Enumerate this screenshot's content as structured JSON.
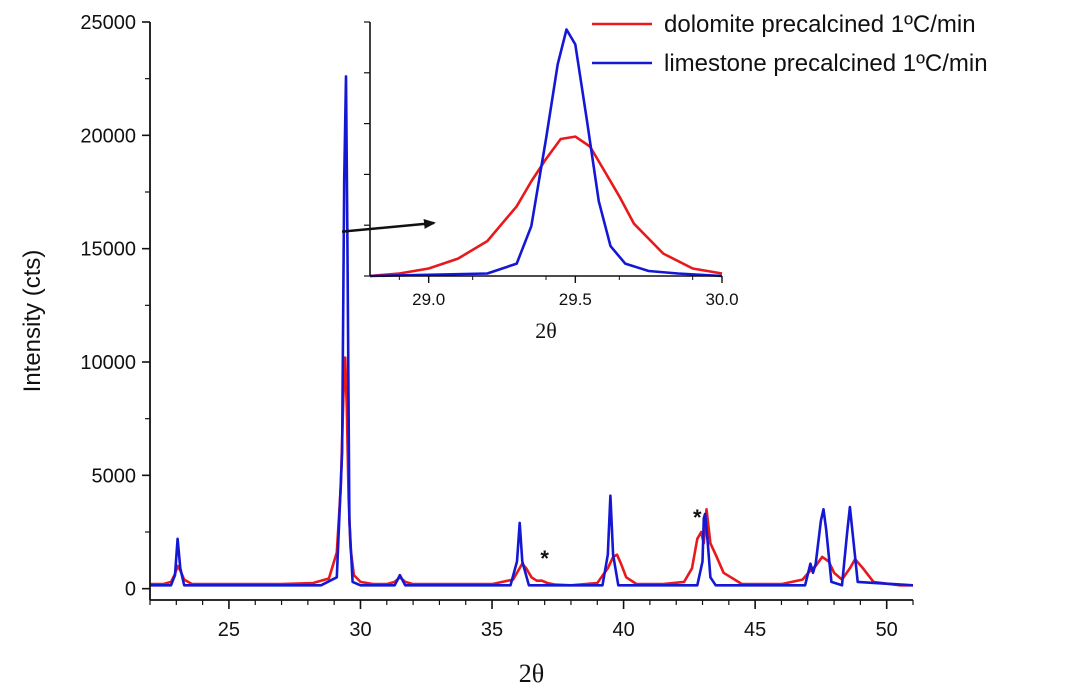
{
  "colors": {
    "dolomite": "#e8191c",
    "limestone": "#1418d4",
    "axis": "#111111",
    "arrow": "#111111"
  },
  "chart_data": [
    {
      "type": "line",
      "title": "",
      "xlabel": "2θ",
      "ylabel": "Intensity (cts)",
      "xlim": [
        22,
        51
      ],
      "ylim": [
        -500,
        25000
      ],
      "x_ticks": [
        25,
        30,
        35,
        40,
        45,
        50
      ],
      "x_tick_labels": [
        "25",
        "30",
        "35",
        "40",
        "45",
        "50"
      ],
      "y_ticks": [
        0,
        5000,
        10000,
        15000,
        20000,
        25000
      ],
      "y_tick_labels": [
        "0",
        "5000",
        "10000",
        "15000",
        "20000",
        "25000"
      ],
      "legend_position": "top-right",
      "series": [
        {
          "name": "dolomite precalcined 1ºC/min",
          "color": "#e8191c",
          "x": [
            22.0,
            22.5,
            22.8,
            22.95,
            23.05,
            23.15,
            23.3,
            23.6,
            25.0,
            27.0,
            28.2,
            28.8,
            29.1,
            29.25,
            29.35,
            29.42,
            29.48,
            29.55,
            29.62,
            29.75,
            30.0,
            30.5,
            31.0,
            31.3,
            31.5,
            31.7,
            32.0,
            33.0,
            35.0,
            35.8,
            36.0,
            36.15,
            36.3,
            36.5,
            36.7,
            36.9,
            37.1,
            37.4,
            38.0,
            39.0,
            39.4,
            39.6,
            39.75,
            39.9,
            40.1,
            40.5,
            41.5,
            42.3,
            42.6,
            42.8,
            42.95,
            43.05,
            43.15,
            43.3,
            43.5,
            43.8,
            44.5,
            46.0,
            46.8,
            47.1,
            47.3,
            47.55,
            47.8,
            48.0,
            48.3,
            48.6,
            48.8,
            49.1,
            49.5,
            50.5,
            51.0
          ],
          "y": [
            200,
            200,
            300,
            650,
            1000,
            800,
            400,
            200,
            200,
            200,
            250,
            450,
            1600,
            4500,
            8500,
            10200,
            8000,
            4000,
            1800,
            600,
            300,
            200,
            200,
            300,
            500,
            300,
            200,
            200,
            200,
            400,
            800,
            1100,
            900,
            500,
            350,
            350,
            250,
            180,
            150,
            250,
            900,
            1400,
            1500,
            1100,
            500,
            200,
            200,
            300,
            900,
            2200,
            2500,
            2000,
            3500,
            2000,
            1500,
            700,
            200,
            200,
            400,
            800,
            1000,
            1400,
            1200,
            700,
            400,
            900,
            1300,
            900,
            300,
            150,
            150
          ]
        },
        {
          "name": "limestone precalcined 1ºC/min",
          "color": "#1418d4",
          "x": [
            22.0,
            22.8,
            22.95,
            23.05,
            23.15,
            23.3,
            25.0,
            28.5,
            29.1,
            29.3,
            29.38,
            29.45,
            29.5,
            29.58,
            29.7,
            30.0,
            31.3,
            31.5,
            31.7,
            35.7,
            35.95,
            36.05,
            36.15,
            36.4,
            39.2,
            39.4,
            39.5,
            39.6,
            39.8,
            42.8,
            43.0,
            43.05,
            43.1,
            43.2,
            43.3,
            43.5,
            46.9,
            47.1,
            47.2,
            47.3,
            47.5,
            47.6,
            47.7,
            47.9,
            48.3,
            48.5,
            48.6,
            48.7,
            48.9,
            51.0
          ],
          "y": [
            150,
            150,
            600,
            2200,
            900,
            150,
            150,
            150,
            500,
            6000,
            18000,
            22600,
            16000,
            3000,
            300,
            150,
            150,
            600,
            150,
            150,
            1200,
            2900,
            1200,
            150,
            150,
            1500,
            4100,
            1500,
            150,
            150,
            1200,
            3100,
            3300,
            2000,
            500,
            150,
            150,
            1100,
            700,
            1100,
            3000,
            3500,
            2600,
            300,
            150,
            2500,
            3600,
            2500,
            300,
            150
          ]
        }
      ],
      "annotations": [
        {
          "text": "*",
          "x": 37.0,
          "y": 1000
        },
        {
          "text": "*",
          "x": 42.8,
          "y": 2800
        }
      ]
    },
    {
      "type": "line",
      "title": "",
      "xlabel": "2θ",
      "ylabel": "",
      "xlim": [
        28.8,
        30.0
      ],
      "ylim": [
        0,
        1.0
      ],
      "x_ticks": [
        29.0,
        29.5,
        30.0
      ],
      "x_tick_labels": [
        "29.0",
        "29.5",
        "30.0"
      ],
      "y_tick_labels_shown": false,
      "series": [
        {
          "color": "#e8191c",
          "x": [
            28.8,
            28.9,
            29.0,
            29.1,
            29.2,
            29.3,
            29.35,
            29.4,
            29.45,
            29.5,
            29.55,
            29.6,
            29.65,
            29.7,
            29.8,
            29.9,
            30.0
          ],
          "y": [
            0.0,
            0.01,
            0.03,
            0.07,
            0.14,
            0.28,
            0.38,
            0.47,
            0.55,
            0.56,
            0.52,
            0.42,
            0.32,
            0.21,
            0.09,
            0.03,
            0.01
          ]
        },
        {
          "color": "#1418d4",
          "x": [
            28.8,
            29.2,
            29.3,
            29.35,
            29.4,
            29.44,
            29.47,
            29.5,
            29.54,
            29.58,
            29.62,
            29.67,
            29.75,
            29.85,
            30.0
          ],
          "y": [
            0.0,
            0.01,
            0.05,
            0.2,
            0.55,
            0.85,
            0.99,
            0.93,
            0.62,
            0.3,
            0.12,
            0.05,
            0.02,
            0.01,
            0.0
          ]
        }
      ]
    }
  ]
}
